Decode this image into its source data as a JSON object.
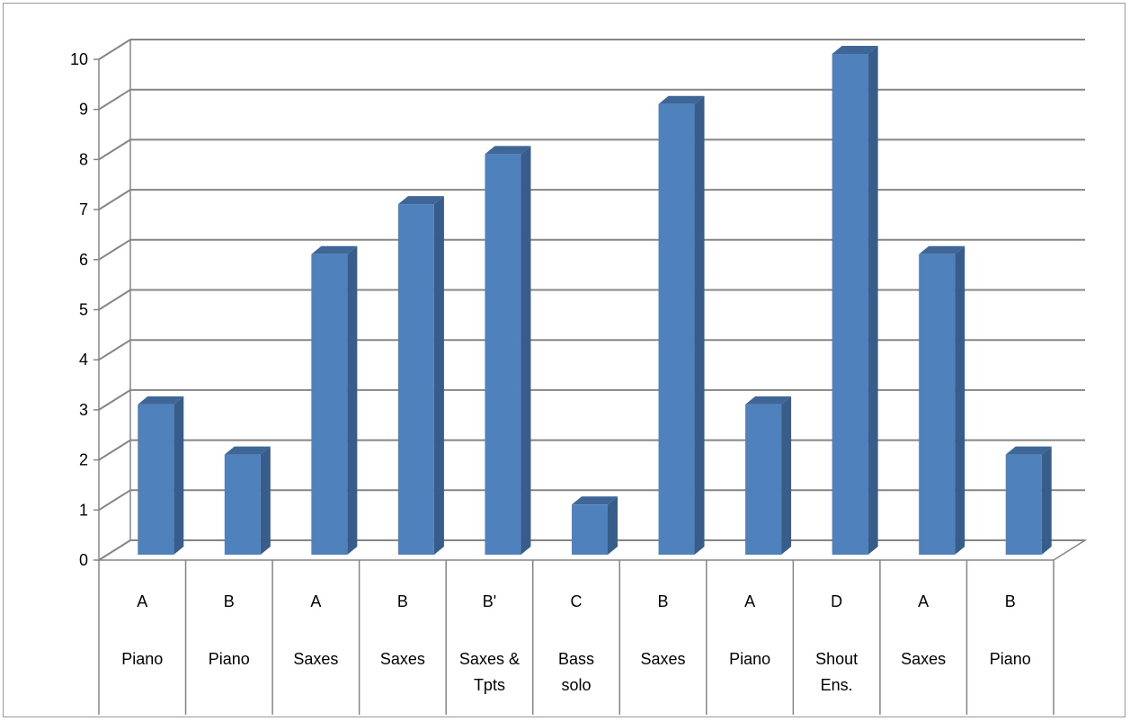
{
  "chart_data": {
    "type": "bar",
    "title": "",
    "xlabel": "",
    "ylabel": "",
    "ylim": [
      0,
      10
    ],
    "yticks": [
      0,
      1,
      2,
      3,
      4,
      5,
      6,
      7,
      8,
      9,
      10
    ],
    "grid": true,
    "style": "3d-column",
    "bar_color": "#4F81BD",
    "bar_side_color": "#385D8A",
    "categories": [
      {
        "section": "A",
        "label": [
          "Piano"
        ]
      },
      {
        "section": "B",
        "label": [
          "Piano"
        ]
      },
      {
        "section": "A",
        "label": [
          "Saxes"
        ]
      },
      {
        "section": "B",
        "label": [
          "Saxes"
        ]
      },
      {
        "section": "B'",
        "label": [
          "Saxes &",
          "Tpts"
        ]
      },
      {
        "section": "C",
        "label": [
          "Bass",
          "solo"
        ]
      },
      {
        "section": "B",
        "label": [
          "Saxes"
        ]
      },
      {
        "section": "A",
        "label": [
          "Piano"
        ]
      },
      {
        "section": "D",
        "label": [
          "Shout",
          "Ens."
        ]
      },
      {
        "section": "A",
        "label": [
          "Saxes"
        ]
      },
      {
        "section": "B",
        "label": [
          "Piano"
        ]
      }
    ],
    "values": [
      3,
      2,
      6,
      7,
      8,
      1,
      9,
      3,
      10,
      6,
      2
    ]
  }
}
